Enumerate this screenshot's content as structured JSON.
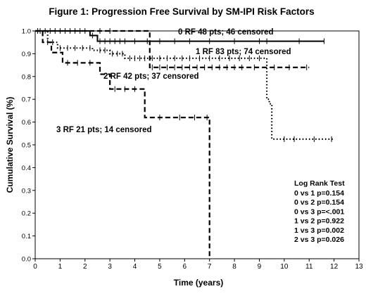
{
  "chart_data": {
    "type": "line",
    "title": "Figure 1: Progression Free Survival by SM-IPI Risk Factors",
    "xlabel": "Time (years)",
    "ylabel": "Cumulative Survival (%)",
    "xlim": [
      0,
      13
    ],
    "ylim": [
      0,
      1.0
    ],
    "x_ticks": [
      "0",
      "1",
      "2",
      "3",
      "4",
      "5",
      "6",
      "7",
      "8",
      "9",
      "10",
      "11",
      "12",
      "13"
    ],
    "y_ticks": [
      "0.0",
      "0.1",
      "0.2",
      "0.3",
      "0.4",
      "0.5",
      "0.6",
      "0.7",
      "0.8",
      "0.9",
      "1.0"
    ],
    "grid": false,
    "series": [
      {
        "name": "0 RF 48 pts; 46 censored",
        "style": "solid",
        "steps": [
          [
            0,
            1.0
          ],
          [
            2.2,
            0.98
          ],
          [
            2.5,
            0.955
          ],
          [
            11.6,
            0.955
          ]
        ],
        "censor_x": [
          0.2,
          0.4,
          0.6,
          0.8,
          1.0,
          1.2,
          1.4,
          1.6,
          1.8,
          2.0,
          2.3,
          2.6,
          2.8,
          3.0,
          3.2,
          3.4,
          3.6,
          4.0,
          4.5,
          5.0,
          5.6,
          6.2,
          7.0,
          8.0,
          9.0,
          9.3,
          10.6,
          11.6
        ]
      },
      {
        "name": "1 RF 83 pts; 74 censored",
        "style": "dotted",
        "steps": [
          [
            0,
            1.0
          ],
          [
            0.5,
            0.95
          ],
          [
            0.9,
            0.925
          ],
          [
            2.3,
            0.915
          ],
          [
            3.0,
            0.9
          ],
          [
            3.6,
            0.88
          ],
          [
            9.3,
            0.7
          ],
          [
            9.4,
            0.68
          ],
          [
            9.5,
            0.525
          ],
          [
            12.0,
            0.525
          ]
        ],
        "censor_x": [
          0.7,
          1.0,
          1.3,
          1.6,
          1.9,
          2.2,
          2.6,
          2.8,
          3.1,
          3.3,
          3.5,
          3.8,
          4.0,
          4.2,
          4.4,
          4.7,
          5.0,
          5.3,
          5.6,
          5.9,
          6.2,
          6.6,
          7.0,
          7.4,
          7.8,
          8.2,
          8.6,
          9.0,
          10.0,
          10.4,
          11.2,
          11.9
        ]
      },
      {
        "name": "2 RF 42 pts; 37 censored",
        "style": "dashed",
        "steps": [
          [
            0,
            1.0
          ],
          [
            4.6,
            0.84
          ],
          [
            11.0,
            0.84
          ]
        ],
        "censor_x": [
          2.6,
          3.0,
          4.7,
          5.0,
          5.3,
          5.6,
          5.9,
          6.2,
          6.5,
          6.8,
          7.1,
          7.4,
          7.7,
          8.0,
          8.3,
          8.8,
          9.6,
          10.2,
          10.9
        ]
      },
      {
        "name": "3 RF 21 pts; 14 censored",
        "style": "dashed",
        "steps": [
          [
            0,
            1.0
          ],
          [
            0.3,
            0.95
          ],
          [
            0.65,
            0.905
          ],
          [
            1.1,
            0.86
          ],
          [
            2.6,
            0.81
          ],
          [
            3.0,
            0.745
          ],
          [
            4.4,
            0.62
          ],
          [
            7.0,
            0.62
          ],
          [
            7.0,
            0.0
          ]
        ],
        "censor_x": [
          0.1,
          0.5,
          1.3,
          1.7,
          2.2,
          3.2,
          3.6,
          4.0,
          5.0,
          5.8,
          6.4,
          6.9
        ]
      }
    ],
    "annotations": {
      "series_labels": [
        "0 RF 48 pts; 46 censored",
        "1 RF 83 pts; 74 censored",
        "2 RF 42 pts; 37 censored",
        "3 RF 21 pts; 14 censored"
      ],
      "log_rank": {
        "title": "Log Rank Test",
        "lines": [
          "0 vs 1 p=0.154",
          "0 vs 2 p=0.154",
          "0 vs 3 p=<.001",
          "1 vs 2 p=0.922",
          "1 vs 3 p=0.002",
          "2 vs 3 p=0.026"
        ]
      }
    }
  }
}
